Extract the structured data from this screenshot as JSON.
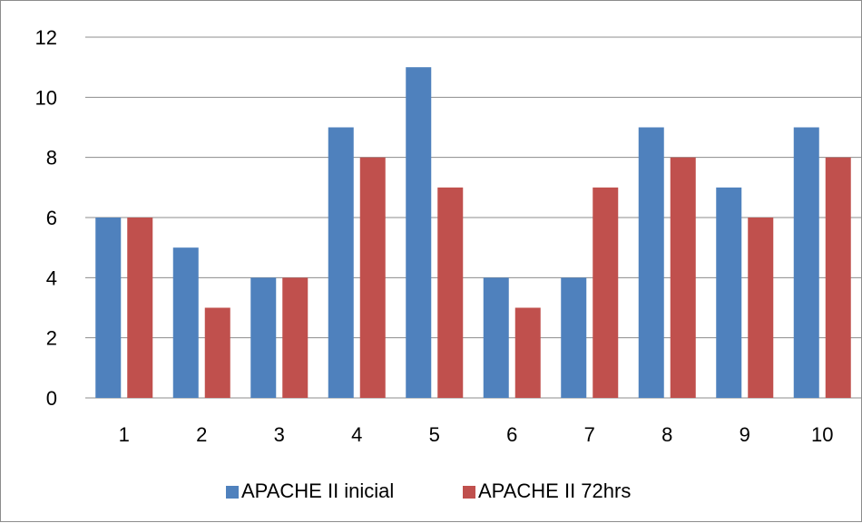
{
  "chart_data": {
    "type": "bar",
    "categories": [
      "1",
      "2",
      "3",
      "4",
      "5",
      "6",
      "7",
      "8",
      "9",
      "10"
    ],
    "series": [
      {
        "name": "APACHE II inicial",
        "color": "#4f81bd",
        "values": [
          6,
          5,
          4,
          9,
          11,
          4,
          4,
          9,
          7,
          9
        ]
      },
      {
        "name": "APACHE II 72hrs",
        "color": "#c0504d",
        "values": [
          6,
          3,
          4,
          8,
          7,
          3,
          7,
          8,
          6,
          8
        ]
      }
    ],
    "yticks": [
      "0",
      "2",
      "4",
      "6",
      "8",
      "10",
      "12"
    ],
    "ylim": [
      0,
      12
    ],
    "grid": true,
    "legend_position": "bottom",
    "title": "",
    "xlabel": "",
    "ylabel": ""
  }
}
